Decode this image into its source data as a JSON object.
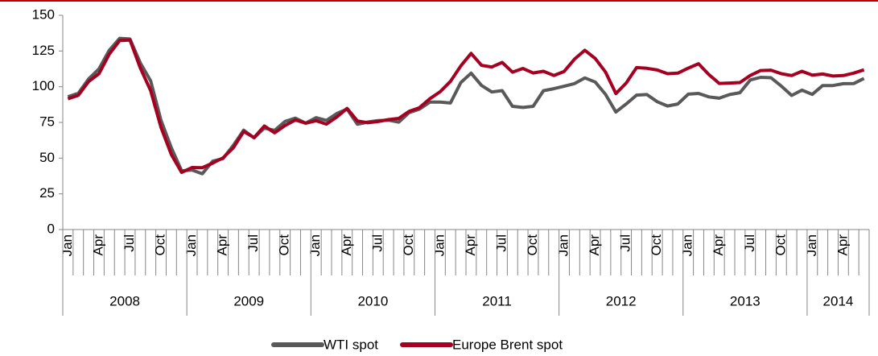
{
  "chart_data": {
    "type": "line",
    "categories": [
      "Jan",
      null,
      null,
      "Apr",
      null,
      null,
      "Jul",
      null,
      null,
      "Oct",
      null,
      null,
      "Jan",
      null,
      null,
      "Apr",
      null,
      null,
      "Jul",
      null,
      null,
      "Oct",
      null,
      null,
      "Jan",
      null,
      null,
      "Apr",
      null,
      null,
      "Jul",
      null,
      null,
      "Oct",
      null,
      null,
      "Jan",
      null,
      null,
      "Apr",
      null,
      null,
      "Jul",
      null,
      null,
      "Oct",
      null,
      null,
      "Jan",
      null,
      null,
      "Apr",
      null,
      null,
      "Jul",
      null,
      null,
      "Oct",
      null,
      null,
      "Jan",
      null,
      null,
      "Apr",
      null,
      null,
      "Jul",
      null,
      null,
      "Oct",
      null,
      null,
      "Jan",
      null,
      null,
      "Apr",
      null,
      null
    ],
    "year_groups": [
      "2008",
      "2009",
      "2010",
      "2011",
      "2012",
      "2013",
      "2014"
    ],
    "series": [
      {
        "name": "WTI spot",
        "color": "#595959",
        "values": [
          93.0,
          95.4,
          105.4,
          112.5,
          125.5,
          133.9,
          133.4,
          116.7,
          104.1,
          76.6,
          57.3,
          41.1,
          41.7,
          39.1,
          47.9,
          49.7,
          59.0,
          69.6,
          64.2,
          71.1,
          69.4,
          75.7,
          78.0,
          74.5,
          78.3,
          76.4,
          81.2,
          84.3,
          73.7,
          75.3,
          76.3,
          76.6,
          75.2,
          81.9,
          84.3,
          89.2,
          89.2,
          88.6,
          102.9,
          109.5,
          100.9,
          96.3,
          97.3,
          86.3,
          85.5,
          86.3,
          97.2,
          98.6,
          100.3,
          102.2,
          106.2,
          103.3,
          94.7,
          82.3,
          87.9,
          94.1,
          94.5,
          89.5,
          86.5,
          87.9,
          94.8,
          95.3,
          92.9,
          92.0,
          94.5,
          95.8,
          104.7,
          106.6,
          106.3,
          100.5,
          93.9,
          97.6,
          94.6,
          100.8,
          100.8,
          102.1,
          102.2,
          105.8
        ]
      },
      {
        "name": "Europe Brent spot",
        "color": "#a50021",
        "values": [
          91.5,
          94.0,
          103.6,
          109.1,
          122.8,
          132.3,
          132.7,
          113.2,
          97.2,
          71.6,
          52.5,
          40.0,
          43.4,
          43.3,
          46.5,
          50.2,
          57.3,
          68.6,
          64.4,
          72.5,
          67.7,
          72.8,
          76.7,
          74.5,
          76.2,
          73.8,
          78.8,
          84.8,
          76.0,
          74.8,
          75.6,
          77.0,
          77.8,
          82.7,
          85.3,
          91.5,
          96.5,
          103.7,
          114.6,
          123.3,
          115.0,
          113.8,
          117.0,
          110.2,
          112.8,
          109.6,
          110.8,
          107.9,
          110.7,
          119.3,
          125.5,
          119.8,
          110.3,
          95.2,
          102.6,
          113.4,
          112.9,
          111.7,
          109.1,
          109.5,
          113.0,
          116.1,
          108.5,
          102.3,
          102.6,
          102.9,
          107.9,
          111.3,
          111.6,
          109.1,
          107.8,
          110.8,
          108.1,
          108.9,
          107.5,
          107.8,
          109.5,
          111.8
        ]
      }
    ],
    "ylim": [
      0,
      150
    ],
    "yticks": [
      0,
      25,
      50,
      75,
      100,
      125,
      150
    ],
    "grid": false,
    "legend": "bottom"
  }
}
